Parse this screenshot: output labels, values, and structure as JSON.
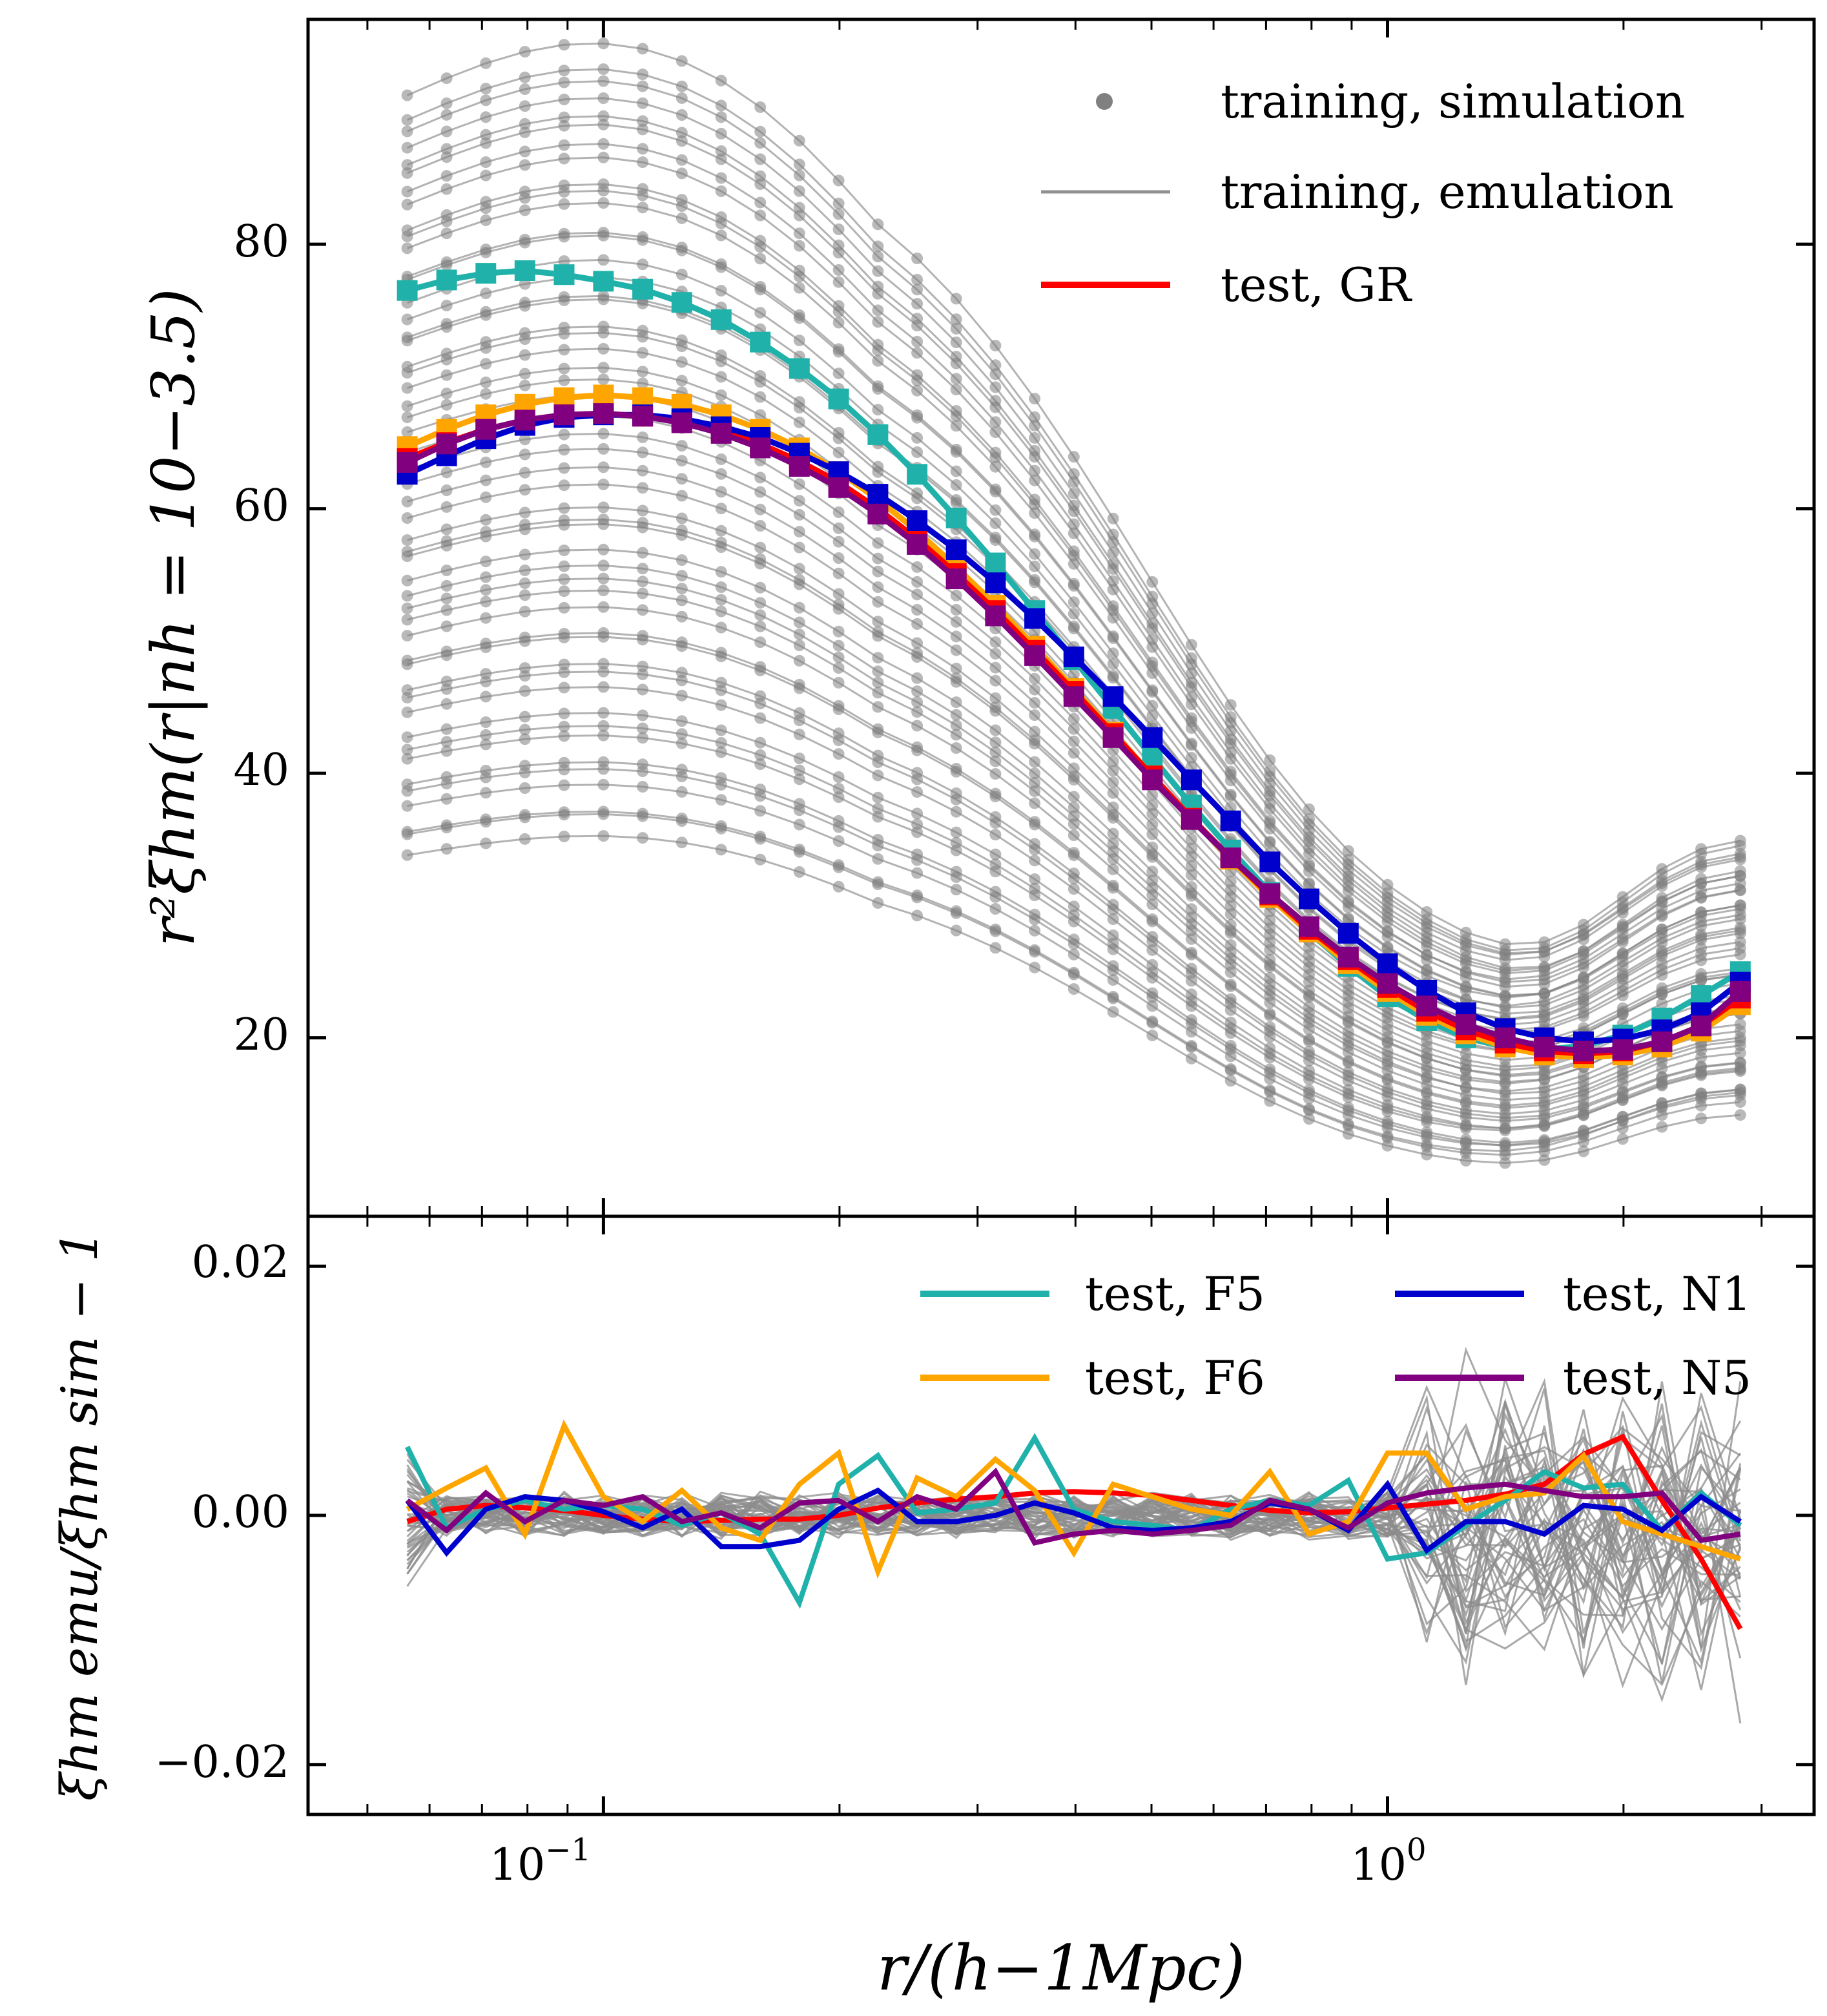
{
  "chart_data": [
    {
      "panel": "top",
      "type": "line",
      "xscale": "log",
      "xlim": [
        0.042,
        3.5
      ],
      "ylim": [
        6.5,
        97
      ],
      "ylabel": "r²ξhm(r|nh = 10−3.5)",
      "yticks": [
        20,
        40,
        60,
        80
      ],
      "ytick_labels": [
        "20",
        "40",
        "60",
        "80"
      ],
      "x": [
        0.0562,
        0.0631,
        0.0708,
        0.0794,
        0.0891,
        0.1,
        0.1122,
        0.1259,
        0.1413,
        0.1585,
        0.1778,
        0.1995,
        0.2239,
        0.2512,
        0.2818,
        0.3162,
        0.3548,
        0.3981,
        0.4467,
        0.5012,
        0.5623,
        0.631,
        0.7079,
        0.7943,
        0.8913,
        1.0,
        1.122,
        1.2589,
        1.4125,
        1.5849,
        1.7783,
        1.9953,
        2.2387,
        2.5119,
        2.8184
      ],
      "series": [
        {
          "name": "test, F5",
          "color": "#20b2aa",
          "marker": "square",
          "values": [
            76.5,
            77.3,
            77.8,
            78.0,
            77.7,
            77.2,
            76.6,
            75.6,
            74.3,
            72.6,
            70.6,
            68.3,
            65.6,
            62.6,
            59.3,
            55.9,
            52.3,
            48.6,
            44.9,
            41.2,
            37.6,
            34.2,
            31.0,
            28.0,
            25.4,
            23.1,
            21.3,
            20.0,
            19.3,
            19.1,
            19.4,
            20.2,
            21.5,
            23.2,
            25.0
          ]
        },
        {
          "name": "test, F6",
          "color": "#ffa500",
          "marker": "square",
          "values": [
            64.7,
            66.0,
            67.1,
            67.9,
            68.4,
            68.6,
            68.4,
            67.9,
            67.1,
            66.0,
            64.6,
            62.8,
            60.7,
            58.3,
            55.6,
            52.7,
            49.6,
            46.4,
            43.1,
            39.8,
            36.6,
            33.5,
            30.6,
            28.0,
            25.6,
            23.5,
            21.7,
            20.3,
            19.3,
            18.7,
            18.5,
            18.7,
            19.3,
            20.5,
            22.5
          ]
        },
        {
          "name": "test, GR",
          "color": "#ff0000",
          "marker": "square",
          "values": [
            63.8,
            65.0,
            66.0,
            66.7,
            67.1,
            67.2,
            67.0,
            66.6,
            65.9,
            64.9,
            63.6,
            62.0,
            60.0,
            57.7,
            55.1,
            52.3,
            49.3,
            46.2,
            43.0,
            39.8,
            36.6,
            33.6,
            30.8,
            28.2,
            25.9,
            23.8,
            22.0,
            20.6,
            19.6,
            19.0,
            18.8,
            19.0,
            19.7,
            20.9,
            23.0
          ]
        },
        {
          "name": "test, N1",
          "color": "#0000cd",
          "marker": "square",
          "values": [
            62.6,
            64.0,
            65.3,
            66.3,
            66.9,
            67.1,
            67.1,
            66.8,
            66.2,
            65.4,
            64.2,
            62.8,
            61.1,
            59.1,
            56.9,
            54.4,
            51.7,
            48.8,
            45.8,
            42.7,
            39.5,
            36.4,
            33.3,
            30.5,
            27.9,
            25.6,
            23.6,
            21.9,
            20.7,
            20.0,
            19.7,
            19.9,
            20.6,
            21.9,
            24.2
          ]
        },
        {
          "name": "test, N5",
          "color": "#800080",
          "marker": "square",
          "values": [
            63.5,
            64.9,
            66.0,
            66.7,
            67.1,
            67.2,
            67.0,
            66.5,
            65.7,
            64.6,
            63.2,
            61.6,
            59.6,
            57.3,
            54.7,
            51.9,
            48.9,
            45.8,
            42.7,
            39.5,
            36.5,
            33.6,
            30.9,
            28.4,
            26.1,
            24.1,
            22.4,
            21.0,
            20.0,
            19.3,
            19.0,
            19.1,
            19.7,
            20.9,
            23.5
          ]
        }
      ],
      "training_family": {
        "count": 50,
        "low_start": 33.8,
        "high_start": 91.5,
        "low_end": 14.5,
        "high_end": 35.0,
        "color": "#808080"
      }
    },
    {
      "panel": "bottom",
      "type": "line",
      "xscale": "log",
      "xlim": [
        0.042,
        3.5
      ],
      "ylim": [
        -0.024,
        0.024
      ],
      "xlabel": "r/(h−1Mpc)",
      "ylabel": "ξhm emu/ξhm sim − 1",
      "yticks": [
        -0.02,
        0.0,
        0.02
      ],
      "ytick_labels": [
        "−0.02",
        "0.00",
        "0.02"
      ],
      "xtick_labels": [
        "10",
        "−1",
        "10",
        "0"
      ],
      "series": [
        {
          "name": "test, GR",
          "color": "#ff0000",
          "values": [
            -0.0005,
            0.0005,
            0.0008,
            0.0006,
            0.0004,
            0.0,
            -0.0003,
            -0.0005,
            -0.0004,
            -0.0003,
            -0.0003,
            0.0,
            0.0006,
            0.001,
            0.0013,
            0.0015,
            0.0018,
            0.0019,
            0.0018,
            0.0016,
            0.0012,
            0.0008,
            0.0004,
            0.0002,
            0.0003,
            0.0006,
            0.0009,
            0.0012,
            0.0017,
            0.0025,
            0.0049,
            0.0063,
            0.0012,
            -0.0035,
            -0.0091
          ]
        },
        {
          "name": "test, F5",
          "color": "#20b2aa",
          "values": [
            0.0055,
            -0.001,
            0.0005,
            0.0012,
            0.0005,
            0.0008,
            0.0005,
            -0.0008,
            0.0002,
            -0.0015,
            -0.007,
            0.0025,
            0.0048,
            0.0002,
            0.0005,
            0.001,
            0.0062,
            0.0005,
            -0.0005,
            -0.0008,
            -0.0012,
            0.0005,
            0.0012,
            0.0008,
            0.0028,
            -0.0035,
            -0.003,
            -0.0008,
            0.0012,
            0.0035,
            0.0022,
            0.0025,
            -0.0012,
            0.0018,
            -0.0008
          ]
        },
        {
          "name": "test, F6",
          "color": "#ffa500",
          "values": [
            0.0005,
            0.0022,
            0.0038,
            -0.0015,
            0.0072,
            0.0015,
            -0.0005,
            0.002,
            -0.001,
            -0.002,
            0.0025,
            0.005,
            -0.0045,
            0.003,
            0.0015,
            0.0045,
            0.002,
            -0.003,
            0.0025,
            0.0015,
            0.0005,
            0.0,
            0.0035,
            -0.0015,
            -0.0005,
            0.005,
            0.005,
            0.0005,
            0.0015,
            0.0018,
            0.0048,
            -0.0005,
            -0.0015,
            -0.0025,
            -0.0035
          ]
        },
        {
          "name": "test, N1",
          "color": "#0000cd",
          "values": [
            0.0012,
            -0.003,
            0.0005,
            0.0015,
            0.0012,
            0.0003,
            -0.001,
            0.0005,
            -0.0025,
            -0.0025,
            -0.002,
            0.0005,
            0.002,
            -0.0005,
            -0.0005,
            0.0,
            0.001,
            0.0002,
            -0.001,
            -0.0012,
            -0.001,
            -0.0005,
            0.001,
            0.0005,
            -0.0012,
            0.0025,
            -0.0028,
            -0.0005,
            -0.0005,
            -0.0015,
            0.0008,
            0.0005,
            -0.0012,
            0.0015,
            -0.0005
          ]
        },
        {
          "name": "test, N5",
          "color": "#800080",
          "values": [
            0.0012,
            -0.0012,
            0.0018,
            -0.0005,
            0.0012,
            0.0008,
            0.0015,
            -0.0005,
            0.0002,
            -0.001,
            0.001,
            0.0012,
            -0.0005,
            0.0015,
            0.0005,
            0.0035,
            -0.0022,
            -0.0015,
            -0.0012,
            -0.0015,
            -0.0012,
            -0.0008,
            0.0012,
            0.0005,
            -0.001,
            0.001,
            0.0018,
            0.0022,
            0.0025,
            0.002,
            0.0015,
            0.0015,
            0.0018,
            -0.002,
            -0.0015
          ]
        }
      ]
    }
  ],
  "legend_top": [
    {
      "label": "training, simulation",
      "style": "dot",
      "color": "#808080"
    },
    {
      "label": "training, emulation",
      "style": "line",
      "color": "#909090"
    },
    {
      "label": "test, GR",
      "style": "line",
      "color": "#ff0000"
    }
  ],
  "legend_bottom": [
    {
      "label": "test, F5",
      "color": "#20b2aa"
    },
    {
      "label": "test, N1",
      "color": "#0000cd"
    },
    {
      "label": "test, F6",
      "color": "#ffa500"
    },
    {
      "label": "test, N5",
      "color": "#800080"
    }
  ]
}
